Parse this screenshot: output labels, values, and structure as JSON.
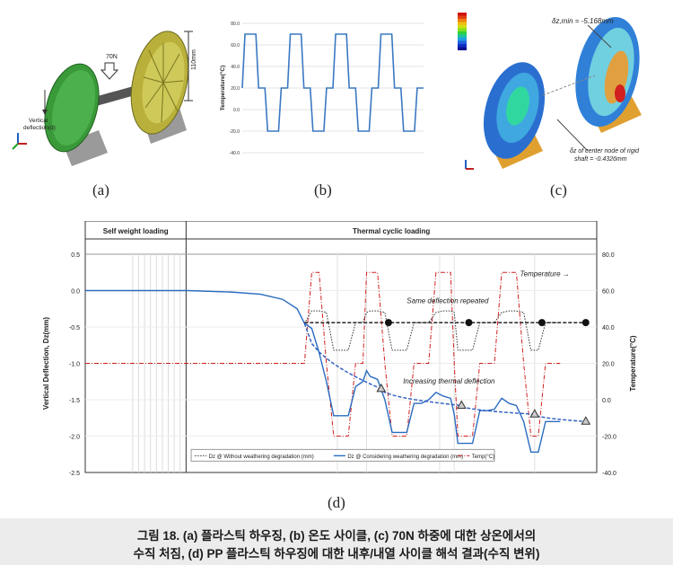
{
  "panel_a": {
    "labels": {
      "load": "70N",
      "height": "110mm",
      "deflection_1": "Vertical",
      "deflection_2": "deflection(d)"
    }
  },
  "panel_b_chart": {
    "type": "line",
    "ylabel": "Temperature(°C)",
    "yticks": [
      "80.0",
      "60.0",
      "40.0",
      "20.0",
      "0.0",
      "-20.0",
      "-40.0"
    ],
    "ylim": [
      -40,
      80
    ],
    "cycle_profile_c": [
      20,
      70,
      70,
      20,
      20,
      -20,
      -20,
      20
    ],
    "cycles": 4,
    "grid": true
  },
  "panel_c": {
    "labels": {
      "max": "δz,min = -5.168mm",
      "center_1": "δz of center node of rigid",
      "center_2": "shaft = -0.4326mm"
    }
  },
  "sub_labels": [
    "(a)",
    "(b)",
    "(c)",
    "(d)"
  ],
  "chart_data": {
    "type": "line",
    "sections": {
      "left": "Self weight loading",
      "right": "Thermal cyclic loading"
    },
    "ylabel_left": "Vertical Deflection, Dz(mm)",
    "ylabel_right": "Temperature(°C)",
    "yticks_left": [
      "0.5",
      "0.0",
      "-0.5",
      "-1.0",
      "-1.5",
      "-2.0",
      "-2.5"
    ],
    "yticks_right": [
      "80.0",
      "60.0",
      "40.0",
      "20.0",
      "0.0",
      "-20.0",
      "-40.0"
    ],
    "ylim_left": [
      -2.5,
      0.5
    ],
    "ylim_right": [
      -40,
      80
    ],
    "x": [
      0,
      14,
      20,
      24,
      27,
      29,
      30,
      31,
      32,
      33,
      34,
      35,
      36,
      37,
      38,
      38.5,
      39,
      40,
      41,
      42,
      43,
      44,
      45,
      46,
      47,
      48,
      49,
      50,
      50.5,
      51,
      52,
      53,
      54,
      55,
      56,
      57,
      58,
      59,
      60,
      61,
      61.5,
      62,
      63,
      64,
      65,
      66,
      67,
      68,
      69,
      70
    ],
    "series": [
      {
        "name": "Dz @ Without weathering degradation (mm)",
        "style": "black-dotted",
        "values": [
          0,
          0,
          -0.02,
          -0.05,
          -0.12,
          -0.25,
          -0.45,
          -0.28,
          -0.28,
          -0.3,
          -0.82,
          -0.82,
          -0.82,
          -0.44,
          -0.44,
          -0.3,
          -0.28,
          -0.28,
          -0.3,
          -0.82,
          -0.82,
          -0.82,
          -0.44,
          -0.44,
          -0.44,
          -0.3,
          -0.28,
          -0.28,
          -0.3,
          -0.82,
          -0.82,
          -0.82,
          -0.44,
          -0.44,
          -0.44,
          -0.3,
          -0.28,
          -0.28,
          -0.3,
          -0.82,
          -0.82,
          -0.82,
          -0.44,
          -0.44,
          -0.44,
          null,
          null,
          null,
          null,
          null
        ]
      },
      {
        "name": "Dz @ Considering weathering degradation (mm)",
        "style": "blue-solid",
        "values": [
          0,
          0,
          -0.02,
          -0.05,
          -0.12,
          -0.25,
          -0.45,
          -0.52,
          -0.85,
          -1.25,
          -1.72,
          -1.72,
          -1.72,
          -1.32,
          -1.25,
          -1.1,
          -1.18,
          -1.22,
          -1.5,
          -1.95,
          -1.95,
          -1.95,
          -1.55,
          -1.55,
          -1.5,
          -1.4,
          -1.45,
          -1.48,
          -1.7,
          -2.1,
          -2.1,
          -2.1,
          -1.65,
          -1.65,
          -1.63,
          -1.48,
          -1.55,
          -1.58,
          -1.8,
          -2.22,
          -2.22,
          -2.22,
          -1.8,
          -1.8,
          -1.8,
          null,
          null,
          null,
          null,
          null
        ]
      },
      {
        "name": "Temp(°C)",
        "style": "red-dashdot",
        "values_c": [
          20,
          20,
          20,
          20,
          20,
          20,
          20,
          70,
          70,
          20,
          -20,
          -20,
          -20,
          20,
          20,
          70,
          70,
          70,
          20,
          -20,
          -20,
          -20,
          20,
          20,
          20,
          70,
          70,
          70,
          20,
          -20,
          -20,
          -20,
          20,
          20,
          20,
          70,
          70,
          70,
          20,
          -20,
          -20,
          -20,
          20,
          20,
          20,
          null,
          null,
          null,
          null,
          null
        ]
      }
    ],
    "trend_same": [
      -0.44,
      -0.44,
      -0.44,
      -0.44
    ],
    "trend_increasing": [
      -1.35,
      -1.58,
      -1.7,
      -1.8
    ],
    "annotations": {
      "temperature": "Temperature →",
      "same": "Same deflection repeated",
      "increasing": "Increasing thermal deflection"
    },
    "legend": {
      "s1": "Dz @ Without weathering degradation (mm)",
      "s2": "Dz @ Considering weathering degradation (mm)",
      "s3": "Temp(°C)"
    },
    "legend_placement": "bottom",
    "grid": true
  },
  "caption": {
    "line1": "그림 18. (a) 플라스틱 하우징, (b) 온도 사이클, (c) 70N 하중에 대한 상온에서의",
    "line2": "수직 처짐, (d) PP 플라스틱 하우징에 대한 내후/내열 사이클 해석 결과(수직 변위)"
  }
}
